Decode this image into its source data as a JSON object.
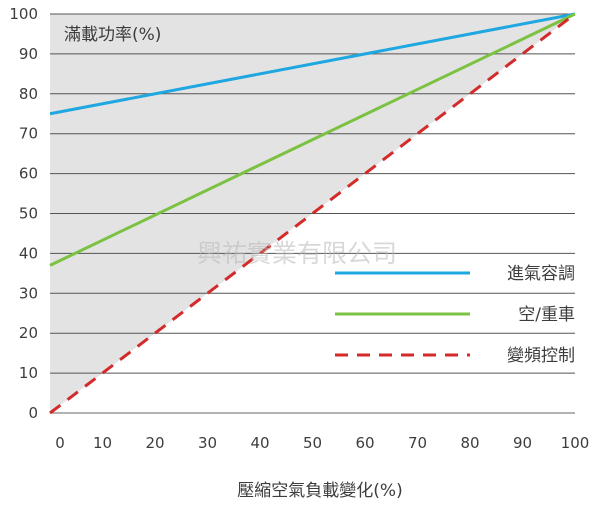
{
  "chart_data": {
    "type": "line",
    "title": "",
    "ylabel": "滿載功率(%)",
    "xlabel": "壓縮空氣負載變化(%)",
    "xlim": [
      0,
      100
    ],
    "ylim": [
      0,
      100
    ],
    "x_ticks": [
      "0",
      "10",
      "20",
      "30",
      "40",
      "50",
      "60",
      "70",
      "80",
      "90",
      "100"
    ],
    "y_ticks": [
      "0",
      "10",
      "20",
      "30",
      "40",
      "50",
      "60",
      "70",
      "80",
      "90",
      "100"
    ],
    "grid": "horizontal",
    "legend_position": "bottom-right",
    "shaded_region": "between variable-speed line and 100%",
    "series": [
      {
        "name": "進氣容調",
        "x": [
          0,
          100
        ],
        "y": [
          75,
          100
        ],
        "color": "#1ea7e0",
        "style": "solid"
      },
      {
        "name": "空/重車",
        "x": [
          0,
          100
        ],
        "y": [
          37,
          100
        ],
        "color": "#7cc242",
        "style": "solid"
      },
      {
        "name": "變頻控制",
        "x": [
          0,
          100
        ],
        "y": [
          0,
          100
        ],
        "color": "#d42a2a",
        "style": "dashed"
      }
    ],
    "watermark": "興祐實業有限公司"
  }
}
